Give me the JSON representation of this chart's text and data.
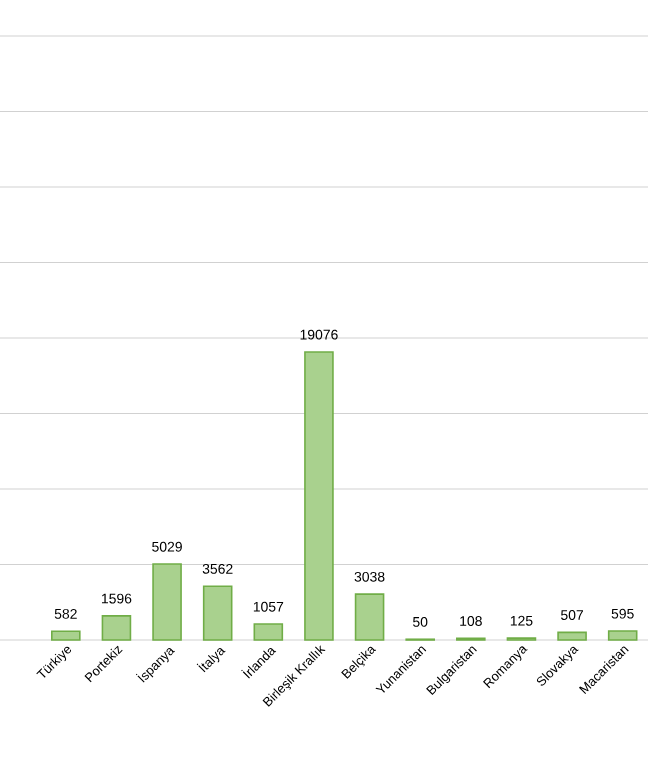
{
  "chart_data": {
    "type": "bar",
    "categories": [
      "Türkiye",
      "Portekiz",
      "İspanya",
      "İtalya",
      "İrlanda",
      "Birleşik Krallık",
      "Belçika",
      "Yunanistan",
      "Bulgaristan",
      "Romanya",
      "Slovakya",
      "Macaristan"
    ],
    "values": [
      582,
      1596,
      5029,
      3562,
      1057,
      19076,
      3038,
      50,
      108,
      125,
      507,
      595
    ],
    "color": "#a9d18e",
    "ylim": [
      0,
      40000
    ],
    "yticks": [
      {
        "value": 0,
        "label": null
      },
      {
        "value": 5000,
        "label": null
      },
      {
        "value": 10000,
        "label": null
      },
      {
        "value": 15000,
        "label": null
      },
      {
        "value": 20000,
        "label": null
      },
      {
        "value": 25000,
        "label": null
      },
      {
        "value": 30000,
        "label": null
      },
      {
        "value": 35000,
        "label": null
      },
      {
        "value": 40000,
        "label": null
      }
    ],
    "grid": "y",
    "tick_labels": "x",
    "data_labels": true
  }
}
